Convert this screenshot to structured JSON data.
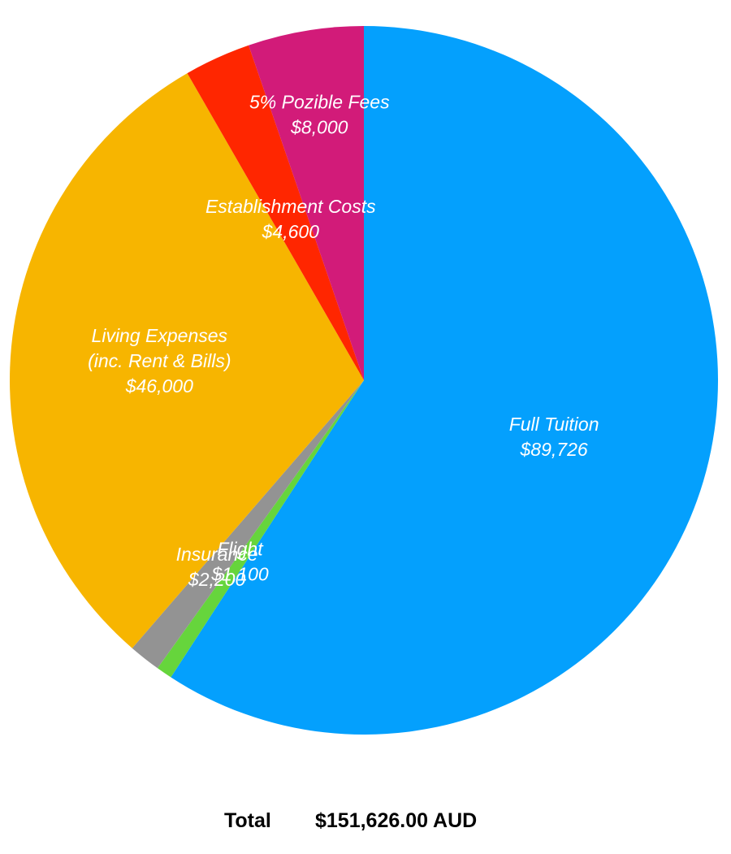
{
  "chart_data": {
    "type": "pie",
    "slices": [
      {
        "name": "Full Tuition",
        "value": 89726,
        "value_label": "$89,726",
        "color": "#04a0fd"
      },
      {
        "name": "Flight",
        "value": 1100,
        "value_label": "$1,100",
        "color": "#66d53c"
      },
      {
        "name": "Insurance",
        "value": 2200,
        "value_label": "$2,200",
        "color": "#939393"
      },
      {
        "name": "Living Expenses\n(inc. Rent & Bills)",
        "value": 46000,
        "value_label": "$46,000",
        "color": "#f7b500"
      },
      {
        "name": "Establishment Costs",
        "value": 4600,
        "value_label": "$4,600",
        "color": "#ff2600"
      },
      {
        "name": "5% Pozible Fees",
        "value": 8000,
        "value_label": "$8,000",
        "color": "#d21b79"
      }
    ],
    "start": "12 o'clock",
    "direction": "clockwise"
  },
  "total": {
    "label": "Total",
    "value": "$151,626.00 AUD"
  }
}
